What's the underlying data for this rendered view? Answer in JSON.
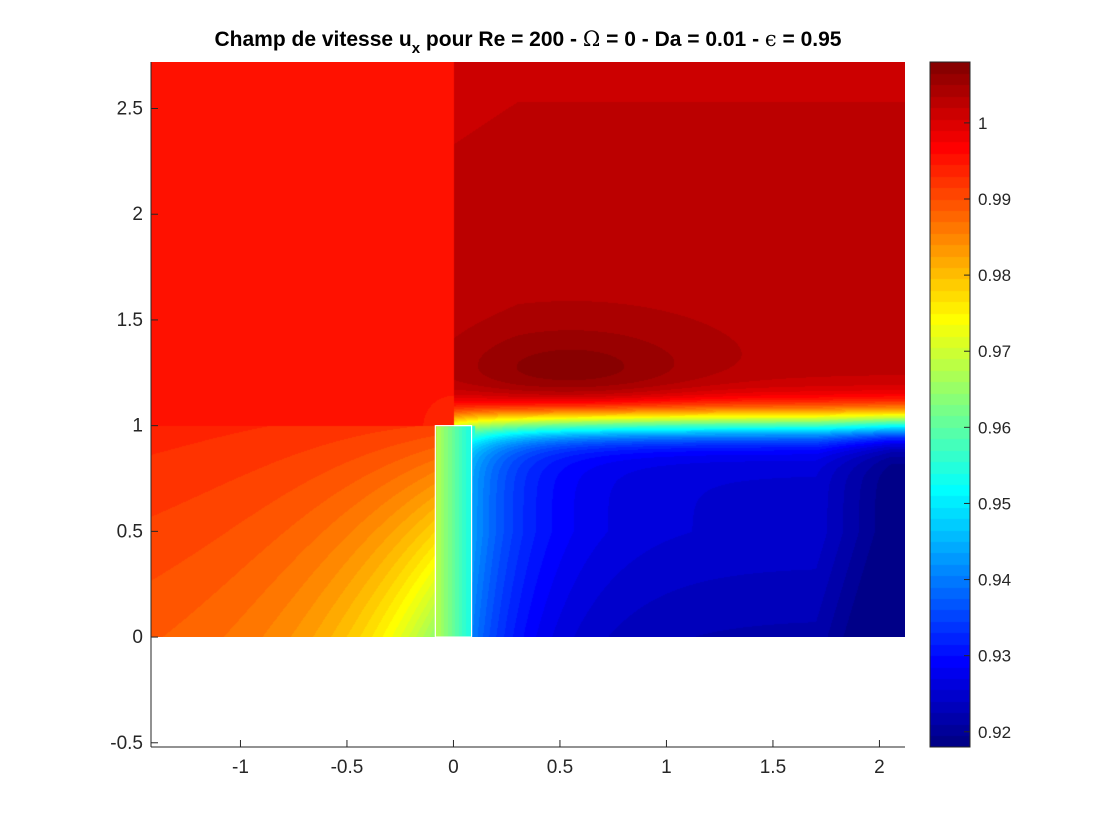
{
  "chart_data": {
    "type": "heatmap",
    "title": {
      "prefix": "Champ de vitesse u",
      "subscript": "x",
      "rest_part1": " pour Re = 200 - ",
      "omega_symbol": "Ω",
      "rest_part2": " = 0 - Da = 0.01 - ",
      "epsilon_symbol": "ϵ",
      "rest_part3": " = 0.95"
    },
    "xlabel": "",
    "ylabel": "",
    "xlim": [
      -1.42,
      2.12
    ],
    "ylim": [
      -0.52,
      2.72
    ],
    "field_ylim": [
      0,
      2.72
    ],
    "xticks": [
      -1,
      -0.5,
      0,
      0.5,
      1,
      1.5,
      2
    ],
    "xtick_labels": [
      "-1",
      "-0.5",
      "0",
      "0.5",
      "1",
      "1.5",
      "2"
    ],
    "yticks": [
      -0.5,
      0,
      0.5,
      1,
      1.5,
      2,
      2.5
    ],
    "ytick_labels": [
      "-0.5",
      "0",
      "0.5",
      "1",
      "1.5",
      "2",
      "2.5"
    ],
    "colormap": "jet",
    "clim": [
      0.918,
      1.008
    ],
    "colorbar_ticks": [
      0.92,
      0.93,
      0.94,
      0.95,
      0.96,
      0.97,
      0.98,
      0.99,
      1
    ],
    "colorbar_tick_labels": [
      "0.92",
      "0.93",
      "0.94",
      "0.95",
      "0.96",
      "0.97",
      "0.98",
      "0.99",
      "1"
    ],
    "colorbar_placement": "right",
    "grid": false,
    "obstacle": {
      "x": [
        -0.085,
        0.085
      ],
      "y": [
        0,
        1
      ],
      "outline_color": "#ffffff"
    },
    "field_description": {
      "far_upstream": 0.995,
      "near_obstacle_upstream": 0.975,
      "wake_min": 0.918,
      "wake_typical": 0.925,
      "shear_layer_max": 1.008,
      "outer_flow": 1.003
    }
  }
}
